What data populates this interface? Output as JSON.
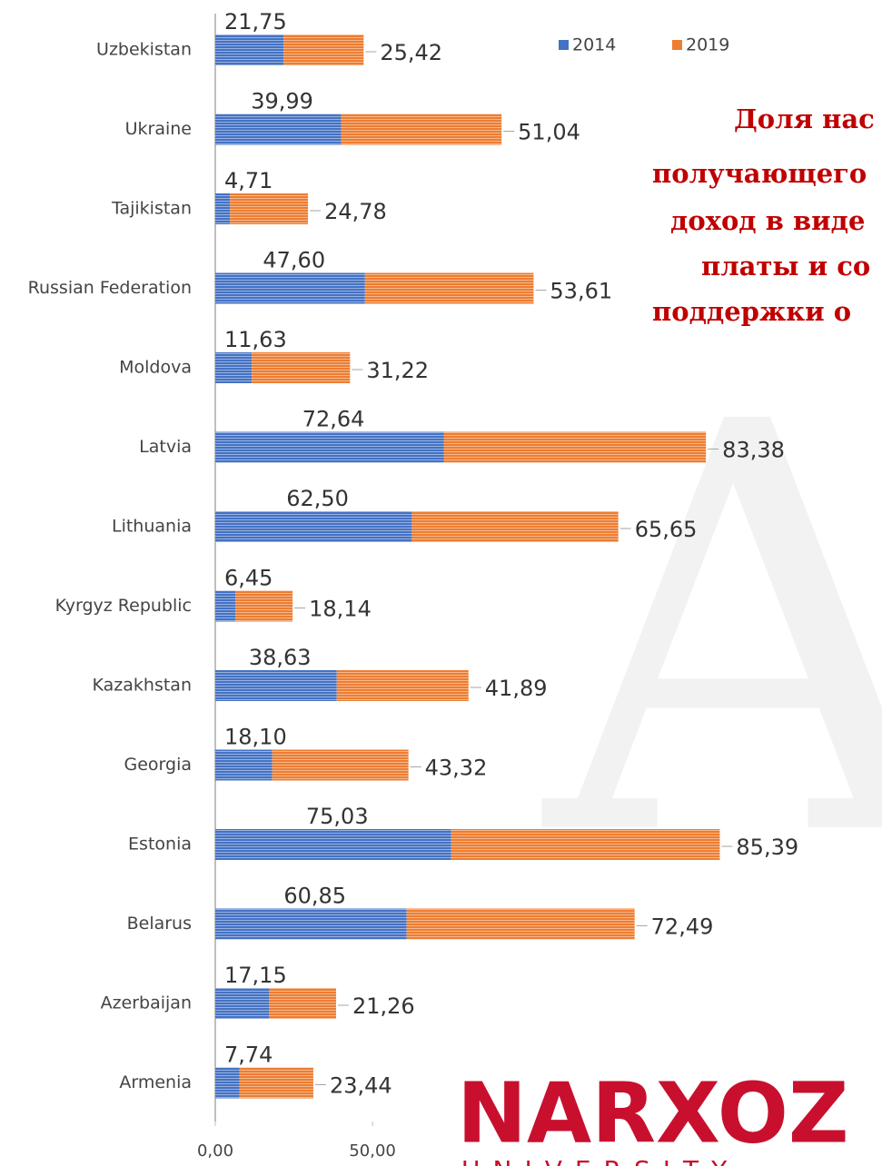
{
  "chart_data": {
    "type": "stacked_barh",
    "title_lines": [
      "Доля нас",
      "получающего",
      "доход в виде",
      "платы и со",
      "поддержки о"
    ],
    "categories": [
      "Uzbekistan",
      "Ukraine",
      "Tajikistan",
      "Russian Federation",
      "Moldova",
      "Latvia",
      "Lithuania",
      "Kyrgyz Republic",
      "Kazakhstan",
      "Georgia",
      "Estonia",
      "Belarus",
      "Azerbaijan",
      "Armenia"
    ],
    "series": [
      {
        "name": "2014",
        "color": "#4472c4",
        "values": [
          21.75,
          39.99,
          4.71,
          47.6,
          11.63,
          72.64,
          62.5,
          6.45,
          38.63,
          18.1,
          75.03,
          60.85,
          17.15,
          7.74
        ],
        "value_labels": [
          "21,75",
          "39,99",
          "4,71",
          "47,60",
          "11,63",
          "72,64",
          "62,50",
          "6,45",
          "38,63",
          "18,10",
          "75,03",
          "60,85",
          "17,15",
          "7,74"
        ]
      },
      {
        "name": "2019",
        "color": "#ed7d31",
        "values": [
          25.42,
          51.04,
          24.78,
          53.61,
          31.22,
          83.38,
          65.65,
          18.14,
          41.89,
          43.32,
          85.39,
          72.49,
          21.26,
          23.44
        ],
        "value_labels": [
          "25,42",
          "51,04",
          "24,78",
          "53,61",
          "31,22",
          "83,38",
          "65,65",
          "18,14",
          "41,89",
          "43,32",
          "85,39",
          "72,49",
          "21,26",
          "23,44"
        ]
      }
    ],
    "xlim": [
      0,
      212
    ],
    "xticks": [
      {
        "value": 0,
        "label": "0,00"
      },
      {
        "value": 50,
        "label": "50,00"
      }
    ],
    "logo": {
      "name": "NARXOZ",
      "sub": "UNIVERSITY"
    }
  }
}
